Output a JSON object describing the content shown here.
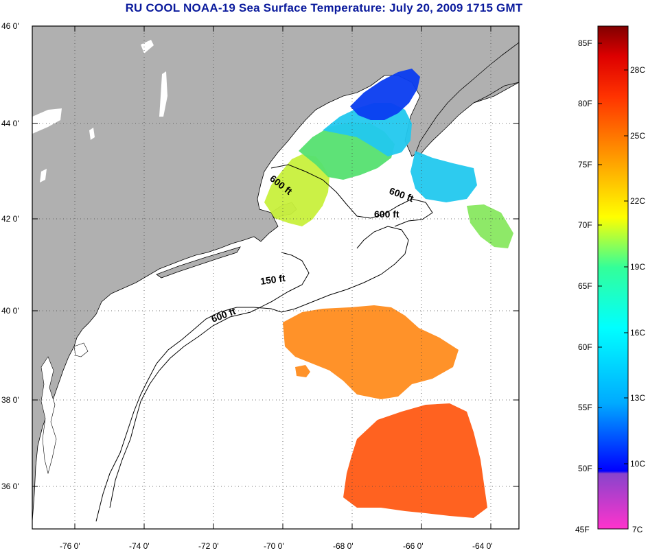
{
  "title": "RU COOL  NOAA-19  Sea Surface Temperature:  July 20, 2009 1715 GMT",
  "map": {
    "lon_range": [
      -77,
      -63
    ],
    "lat_range": [
      35,
      46
    ],
    "lon_ticks": [
      {
        "value": -76,
        "label": "-76 0'"
      },
      {
        "value": -74,
        "label": "-74 0'"
      },
      {
        "value": -72,
        "label": "-72 0'"
      },
      {
        "value": -70,
        "label": "-70 0'"
      },
      {
        "value": -68,
        "label": "-68 0'"
      },
      {
        "value": -66,
        "label": "-66 0'"
      },
      {
        "value": -64,
        "label": "-64 0'"
      }
    ],
    "lat_ticks": [
      {
        "value": 46,
        "label": "46 0'"
      },
      {
        "value": 44,
        "label": "44 0'"
      },
      {
        "value": 42,
        "label": "42 0'"
      },
      {
        "value": 40,
        "label": "40 0'"
      },
      {
        "value": 38,
        "label": "38 0'"
      },
      {
        "value": 36,
        "label": "36 0'"
      }
    ],
    "grid": "dotted",
    "land_color": "#b0b0b0",
    "ocean_color": "#ffffff"
  },
  "isobaths": [
    {
      "label": "600 ft",
      "lon": -69.7,
      "lat": 42.9
    },
    {
      "label": "600 ft",
      "lon": -66.3,
      "lat": 42.55
    },
    {
      "label": "600 ft",
      "lon": -66.5,
      "lat": 42.15
    },
    {
      "label": "150 ft",
      "lon": -70.0,
      "lat": 40.7
    },
    {
      "label": "600 ft",
      "lon": -71.4,
      "lat": 39.9
    }
  ],
  "colorbar": {
    "fahrenheit_labels": [
      "85F",
      "80F",
      "75F",
      "70F",
      "65F",
      "60F",
      "55F",
      "50F",
      "45F"
    ],
    "celsius_labels": [
      "28C",
      "25C",
      "22C",
      "19C",
      "16C",
      "13C",
      "10C",
      "7C"
    ],
    "colors": [
      "#ff33cc",
      "#8844cc",
      "#0000ff",
      "#00aaff",
      "#00ffff",
      "#33ff99",
      "#ffff00",
      "#ff9900",
      "#ff3300",
      "#cc0000",
      "#800000"
    ]
  },
  "sst_patches": [
    {
      "name": "gulf-of-maine-cold",
      "color": "#0a3cf0"
    },
    {
      "name": "gulf-of-maine-cyan",
      "color": "#22c8ee"
    },
    {
      "name": "gulf-of-maine-green",
      "color": "#55e070"
    },
    {
      "name": "gulf-of-maine-yellow",
      "color": "#c8f03c"
    },
    {
      "name": "slope-orange",
      "color": "#ff8c1e"
    },
    {
      "name": "gulfstream-red",
      "color": "#ff5a14"
    }
  ]
}
